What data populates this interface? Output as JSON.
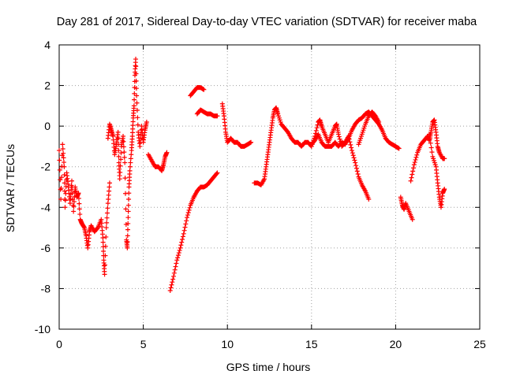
{
  "chart_data": {
    "type": "scatter",
    "title": "Day 281 of 2017, Sidereal Day-to-day VTEC variation (SDTVAR) for receiver maba",
    "xlabel": "GPS time / hours",
    "ylabel": "SDTVAR / TECUs",
    "xlim": [
      0,
      25
    ],
    "ylim": [
      -10,
      4
    ],
    "xticks": [
      0,
      5,
      10,
      15,
      20,
      25
    ],
    "yticks": [
      -10,
      -8,
      -6,
      -4,
      -2,
      0,
      2,
      4
    ],
    "grid": true,
    "marker": "+",
    "color": "#ff0000",
    "series": [
      {
        "name": "maba",
        "segments": [
          [
            [
              0.0,
              -1.2
            ],
            [
              0.1,
              -3.6
            ],
            [
              0.2,
              -0.9
            ],
            [
              0.3,
              -2.0
            ],
            [
              0.35,
              -4.0
            ],
            [
              0.45,
              -2.3
            ],
            [
              0.55,
              -3.0
            ],
            [
              0.65,
              -3.8
            ],
            [
              0.75,
              -2.7
            ],
            [
              0.85,
              -4.2
            ],
            [
              0.95,
              -3.0
            ],
            [
              1.05,
              -3.5
            ],
            [
              1.15,
              -3.3
            ],
            [
              1.25,
              -4.6
            ],
            [
              1.35,
              -4.8
            ],
            [
              1.5,
              -5.0
            ],
            [
              1.6,
              -5.4
            ],
            [
              1.7,
              -6.0
            ],
            [
              1.8,
              -5.2
            ],
            [
              1.9,
              -4.9
            ],
            [
              2.1,
              -5.2
            ],
            [
              2.3,
              -5.0
            ],
            [
              2.5,
              -4.6
            ],
            [
              2.6,
              -5.5
            ],
            [
              2.65,
              -6.6
            ],
            [
              2.7,
              -7.3
            ],
            [
              2.8,
              -5.0
            ],
            [
              2.9,
              -3.8
            ],
            [
              3.0,
              -2.8
            ]
          ],
          [
            [
              2.9,
              -0.6
            ],
            [
              3.0,
              0.1
            ],
            [
              3.1,
              -0.2
            ],
            [
              3.2,
              -0.5
            ],
            [
              3.3,
              -1.4
            ],
            [
              3.4,
              -0.9
            ],
            [
              3.5,
              -0.3
            ],
            [
              3.55,
              -1.8
            ],
            [
              3.6,
              -2.6
            ],
            [
              3.7,
              -1.0
            ],
            [
              3.8,
              -0.5
            ],
            [
              3.9,
              -1.8
            ],
            [
              4.0,
              -5.6
            ],
            [
              4.05,
              -6.0
            ],
            [
              4.1,
              -4.5
            ],
            [
              4.15,
              -3.0
            ],
            [
              4.2,
              -2.2
            ],
            [
              4.3,
              -1.2
            ],
            [
              4.35,
              -0.5
            ],
            [
              4.4,
              0.4
            ],
            [
              4.45,
              1.0
            ],
            [
              4.5,
              2.5
            ],
            [
              4.55,
              3.3
            ],
            [
              4.6,
              1.5
            ],
            [
              4.7,
              -0.3
            ],
            [
              4.8,
              -1.0
            ],
            [
              4.9,
              0.0
            ],
            [
              5.0,
              -0.8
            ],
            [
              5.1,
              -0.2
            ],
            [
              5.2,
              0.2
            ]
          ],
          [
            [
              5.3,
              -1.4
            ],
            [
              5.5,
              -1.7
            ],
            [
              5.7,
              -2.0
            ],
            [
              5.9,
              -2.0
            ],
            [
              6.1,
              -2.2
            ],
            [
              6.2,
              -1.9
            ],
            [
              6.3,
              -1.5
            ],
            [
              6.4,
              -1.3
            ]
          ],
          [
            [
              6.6,
              -8.1
            ],
            [
              6.8,
              -7.4
            ],
            [
              7.0,
              -6.6
            ],
            [
              7.2,
              -6.0
            ],
            [
              7.4,
              -5.3
            ],
            [
              7.6,
              -4.5
            ],
            [
              7.8,
              -3.9
            ],
            [
              8.0,
              -3.5
            ],
            [
              8.2,
              -3.2
            ],
            [
              8.4,
              -3.0
            ],
            [
              8.6,
              -3.0
            ],
            [
              8.8,
              -2.9
            ],
            [
              9.0,
              -2.7
            ],
            [
              9.2,
              -2.5
            ],
            [
              9.4,
              -2.3
            ]
          ],
          [
            [
              7.8,
              1.5
            ],
            [
              8.0,
              1.7
            ],
            [
              8.2,
              1.9
            ],
            [
              8.4,
              1.9
            ],
            [
              8.6,
              1.8
            ]
          ],
          [
            [
              8.2,
              0.6
            ],
            [
              8.4,
              0.8
            ],
            [
              8.6,
              0.7
            ],
            [
              8.8,
              0.6
            ],
            [
              9.0,
              0.6
            ],
            [
              9.2,
              0.5
            ],
            [
              9.4,
              0.5
            ]
          ],
          [
            [
              9.7,
              1.1
            ],
            [
              9.8,
              0.5
            ],
            [
              9.9,
              -0.3
            ],
            [
              10.0,
              -0.8
            ],
            [
              10.2,
              -0.6
            ],
            [
              10.4,
              -0.8
            ],
            [
              10.6,
              -0.8
            ],
            [
              10.8,
              -1.0
            ],
            [
              11.0,
              -1.0
            ],
            [
              11.2,
              -0.9
            ],
            [
              11.4,
              -0.8
            ]
          ],
          [
            [
              11.6,
              -2.8
            ],
            [
              11.8,
              -2.8
            ],
            [
              12.0,
              -2.9
            ],
            [
              12.2,
              -2.6
            ],
            [
              12.3,
              -2.0
            ],
            [
              12.4,
              -1.4
            ],
            [
              12.5,
              -0.8
            ],
            [
              12.6,
              -0.2
            ],
            [
              12.7,
              0.4
            ],
            [
              12.8,
              0.8
            ],
            [
              12.9,
              0.9
            ],
            [
              13.0,
              0.6
            ],
            [
              13.2,
              0.1
            ],
            [
              13.4,
              -0.1
            ],
            [
              13.6,
              -0.3
            ],
            [
              13.8,
              -0.6
            ],
            [
              14.0,
              -0.8
            ],
            [
              14.2,
              -0.8
            ],
            [
              14.4,
              -1.0
            ],
            [
              14.6,
              -0.8
            ],
            [
              14.8,
              -0.8
            ],
            [
              15.0,
              -1.0
            ],
            [
              15.2,
              -0.5
            ],
            [
              15.4,
              0.2
            ],
            [
              15.5,
              0.3
            ],
            [
              15.6,
              0.0
            ],
            [
              15.8,
              -0.4
            ],
            [
              16.0,
              -0.8
            ],
            [
              16.2,
              -0.4
            ],
            [
              16.4,
              0.0
            ],
            [
              16.5,
              0.1
            ],
            [
              16.6,
              -0.4
            ],
            [
              16.8,
              -1.0
            ],
            [
              17.0,
              -0.8
            ],
            [
              17.2,
              -0.5
            ],
            [
              17.4,
              -1.2
            ],
            [
              17.6,
              -1.8
            ],
            [
              17.8,
              -2.5
            ],
            [
              18.0,
              -2.9
            ],
            [
              18.2,
              -3.2
            ],
            [
              18.4,
              -3.6
            ]
          ],
          [
            [
              15.0,
              -0.9
            ],
            [
              15.2,
              -0.7
            ],
            [
              15.4,
              -0.4
            ],
            [
              15.6,
              -0.8
            ],
            [
              15.8,
              -1.0
            ],
            [
              16.0,
              -1.0
            ],
            [
              16.2,
              -1.0
            ],
            [
              16.4,
              -0.8
            ],
            [
              16.6,
              -1.0
            ],
            [
              16.8,
              -0.8
            ],
            [
              17.0,
              -0.9
            ],
            [
              17.2,
              -0.6
            ],
            [
              17.4,
              -0.2
            ],
            [
              17.6,
              0.1
            ],
            [
              17.8,
              0.3
            ],
            [
              18.0,
              0.4
            ],
            [
              18.2,
              0.6
            ],
            [
              18.4,
              0.7
            ],
            [
              18.6,
              0.5
            ],
            [
              18.8,
              0.3
            ],
            [
              19.0,
              0.1
            ],
            [
              19.2,
              -0.2
            ],
            [
              19.4,
              -0.6
            ],
            [
              19.6,
              -0.8
            ],
            [
              19.8,
              -0.9
            ],
            [
              20.0,
              -1.0
            ],
            [
              20.2,
              -1.1
            ]
          ],
          [
            [
              17.8,
              -0.9
            ],
            [
              18.0,
              -0.4
            ],
            [
              18.2,
              0.1
            ],
            [
              18.4,
              0.5
            ],
            [
              18.6,
              0.7
            ],
            [
              18.8,
              0.5
            ],
            [
              19.0,
              0.2
            ]
          ],
          [
            [
              20.3,
              -3.5
            ],
            [
              20.4,
              -3.9
            ],
            [
              20.5,
              -4.1
            ],
            [
              20.6,
              -3.8
            ],
            [
              20.8,
              -4.2
            ],
            [
              21.0,
              -4.6
            ]
          ],
          [
            [
              20.9,
              -2.7
            ],
            [
              21.1,
              -1.9
            ],
            [
              21.3,
              -1.3
            ],
            [
              21.5,
              -0.9
            ],
            [
              21.7,
              -0.7
            ],
            [
              21.9,
              -0.5
            ],
            [
              22.0,
              -0.7
            ],
            [
              22.1,
              -0.3
            ],
            [
              22.2,
              0.2
            ],
            [
              22.3,
              0.3
            ],
            [
              22.4,
              -0.3
            ],
            [
              22.5,
              -1.0
            ],
            [
              22.6,
              -1.3
            ],
            [
              22.8,
              -1.6
            ],
            [
              22.9,
              -1.6
            ]
          ],
          [
            [
              22.0,
              -0.4
            ],
            [
              22.2,
              -1.5
            ],
            [
              22.4,
              -2.0
            ],
            [
              22.5,
              -2.8
            ],
            [
              22.6,
              -3.5
            ],
            [
              22.7,
              -4.0
            ],
            [
              22.8,
              -3.3
            ],
            [
              22.9,
              -3.1
            ]
          ]
        ]
      }
    ]
  }
}
